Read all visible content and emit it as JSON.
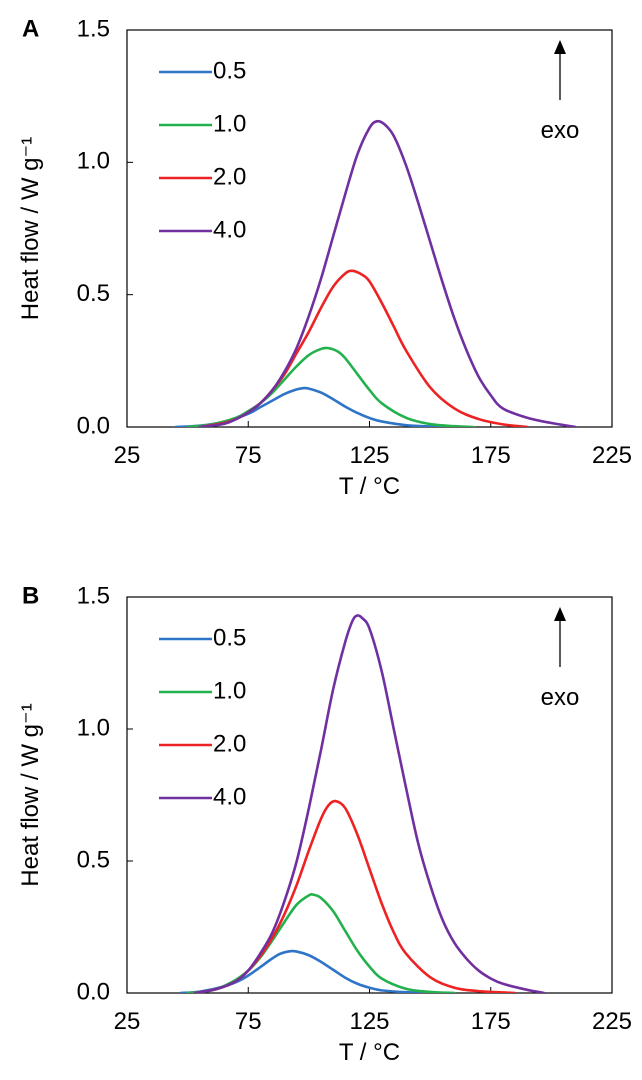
{
  "chart_data": [
    {
      "type": "line",
      "panel_label": "A",
      "xlabel": "T / °C",
      "ylabel": "Heat flow / W g⁻¹",
      "xlim": [
        25,
        225
      ],
      "ylim": [
        0,
        1.5
      ],
      "xticks": [
        "25",
        "75",
        "125",
        "175",
        "225"
      ],
      "yticks": [
        "0.0",
        "0.5",
        "1.0",
        "1.5"
      ],
      "annotation": "exo",
      "legend_position": "top-left",
      "series": [
        {
          "name": "0.5",
          "color": "#2E75C7",
          "x": [
            45,
            55,
            65,
            75,
            80,
            85,
            90,
            95,
            98,
            100,
            105,
            110,
            115,
            120,
            125,
            130,
            140,
            150,
            160
          ],
          "values": [
            0.0,
            0.005,
            0.02,
            0.05,
            0.075,
            0.1,
            0.125,
            0.142,
            0.147,
            0.145,
            0.13,
            0.105,
            0.077,
            0.053,
            0.034,
            0.021,
            0.007,
            0.002,
            0.0
          ]
        },
        {
          "name": "1.0",
          "color": "#23B14D",
          "x": [
            50,
            60,
            70,
            75,
            80,
            85,
            90,
            95,
            100,
            105,
            108,
            112,
            115,
            120,
            125,
            130,
            140,
            150,
            160,
            168
          ],
          "values": [
            0.0,
            0.01,
            0.035,
            0.06,
            0.09,
            0.13,
            0.18,
            0.23,
            0.272,
            0.295,
            0.298,
            0.285,
            0.26,
            0.2,
            0.14,
            0.09,
            0.035,
            0.011,
            0.003,
            0.0
          ]
        },
        {
          "name": "2.0",
          "color": "#EE2222",
          "x": [
            55,
            65,
            70,
            75,
            80,
            85,
            90,
            95,
            100,
            105,
            110,
            115,
            118,
            122,
            125,
            130,
            135,
            140,
            150,
            160,
            170,
            180,
            190
          ],
          "values": [
            0.0,
            0.015,
            0.03,
            0.055,
            0.09,
            0.14,
            0.2,
            0.28,
            0.36,
            0.45,
            0.53,
            0.58,
            0.59,
            0.575,
            0.55,
            0.47,
            0.38,
            0.29,
            0.15,
            0.07,
            0.03,
            0.01,
            0.0
          ]
        },
        {
          "name": "4.0",
          "color": "#7030A0",
          "x": [
            55,
            65,
            70,
            75,
            80,
            85,
            90,
            95,
            100,
            105,
            110,
            115,
            120,
            125,
            128,
            131,
            135,
            140,
            145,
            150,
            155,
            160,
            165,
            170,
            175,
            180,
            190,
            200,
            210
          ],
          "values": [
            0.0,
            0.012,
            0.03,
            0.055,
            0.09,
            0.14,
            0.21,
            0.3,
            0.42,
            0.56,
            0.72,
            0.88,
            1.03,
            1.13,
            1.155,
            1.145,
            1.1,
            0.99,
            0.85,
            0.7,
            0.55,
            0.41,
            0.29,
            0.19,
            0.12,
            0.07,
            0.035,
            0.015,
            0.0
          ]
        }
      ]
    },
    {
      "type": "line",
      "panel_label": "B",
      "xlabel": "T / °C",
      "ylabel": "Heat flow / W g⁻¹",
      "xlim": [
        25,
        225
      ],
      "ylim": [
        0,
        1.5
      ],
      "xticks": [
        "25",
        "75",
        "125",
        "175",
        "225"
      ],
      "yticks": [
        "0.0",
        "0.5",
        "1.0",
        "1.5"
      ],
      "annotation": "exo",
      "legend_position": "top-left",
      "series": [
        {
          "name": "0.5",
          "color": "#2E75C7",
          "x": [
            47,
            55,
            65,
            72,
            78,
            84,
            88,
            92,
            95,
            100,
            105,
            110,
            115,
            120,
            125,
            130,
            140,
            148
          ],
          "values": [
            0.0,
            0.005,
            0.025,
            0.05,
            0.085,
            0.125,
            0.148,
            0.158,
            0.157,
            0.143,
            0.118,
            0.088,
            0.058,
            0.035,
            0.02,
            0.01,
            0.003,
            0.0
          ]
        },
        {
          "name": "1.0",
          "color": "#23B14D",
          "x": [
            50,
            60,
            68,
            75,
            80,
            85,
            90,
            95,
            100,
            102,
            105,
            110,
            115,
            120,
            125,
            130,
            140,
            150,
            160
          ],
          "values": [
            0.0,
            0.01,
            0.04,
            0.085,
            0.135,
            0.2,
            0.27,
            0.335,
            0.37,
            0.372,
            0.36,
            0.31,
            0.235,
            0.16,
            0.1,
            0.055,
            0.016,
            0.004,
            0.0
          ]
        },
        {
          "name": "2.0",
          "color": "#EE2222",
          "x": [
            53,
            62,
            70,
            75,
            80,
            85,
            90,
            95,
            100,
            105,
            108,
            111,
            115,
            120,
            125,
            130,
            135,
            140,
            150,
            160,
            170,
            180,
            185
          ],
          "values": [
            0.0,
            0.015,
            0.045,
            0.085,
            0.14,
            0.21,
            0.3,
            0.41,
            0.54,
            0.66,
            0.71,
            0.727,
            0.7,
            0.6,
            0.47,
            0.34,
            0.23,
            0.15,
            0.06,
            0.02,
            0.007,
            0.002,
            0.0
          ]
        },
        {
          "name": "4.0",
          "color": "#7030A0",
          "x": [
            53,
            62,
            70,
            75,
            80,
            85,
            90,
            95,
            100,
            105,
            110,
            115,
            118,
            120,
            122,
            125,
            130,
            135,
            140,
            145,
            150,
            155,
            160,
            165,
            170,
            175,
            180,
            190,
            197
          ],
          "values": [
            0.0,
            0.015,
            0.045,
            0.085,
            0.15,
            0.23,
            0.35,
            0.5,
            0.7,
            0.92,
            1.15,
            1.33,
            1.41,
            1.43,
            1.42,
            1.38,
            1.22,
            1.0,
            0.78,
            0.57,
            0.41,
            0.28,
            0.19,
            0.13,
            0.085,
            0.055,
            0.035,
            0.012,
            0.0
          ]
        }
      ]
    }
  ]
}
